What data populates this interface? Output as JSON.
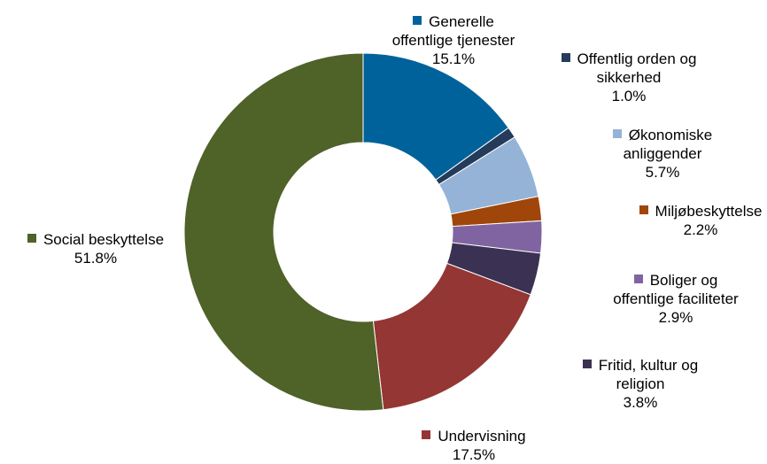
{
  "chart_data": {
    "type": "pie",
    "variant": "donut",
    "start_angle_deg": 0,
    "direction": "clockwise",
    "slices": [
      {
        "label_lines": [
          "Generelle",
          "offentlige tjenester"
        ],
        "value": 15.1,
        "value_label": "15.1%",
        "color": "#00629b"
      },
      {
        "label_lines": [
          "Offentlig orden og",
          "sikkerhed"
        ],
        "value": 1.0,
        "value_label": "1.0%",
        "color": "#243b5a"
      },
      {
        "label_lines": [
          "Økonomiske",
          "anliggender"
        ],
        "value": 5.7,
        "value_label": "5.7%",
        "color": "#95b3d7"
      },
      {
        "label_lines": [
          "Miljøbeskyttelse"
        ],
        "value": 2.2,
        "value_label": "2.2%",
        "color": "#a0460a"
      },
      {
        "label_lines": [
          "Boliger og",
          "offentlige faciliteter"
        ],
        "value": 2.9,
        "value_label": "2.9%",
        "color": "#8064a2"
      },
      {
        "label_lines": [
          "Fritid, kultur og",
          "religion"
        ],
        "value": 3.8,
        "value_label": "3.8%",
        "color": "#3b3152"
      },
      {
        "label_lines": [
          "Undervisning"
        ],
        "value": 17.5,
        "value_label": "17.5%",
        "color": "#943634"
      },
      {
        "label_lines": [
          "Social beskyttelse"
        ],
        "value": 51.8,
        "value_label": "51.8%",
        "color": "#4f6228"
      }
    ]
  }
}
